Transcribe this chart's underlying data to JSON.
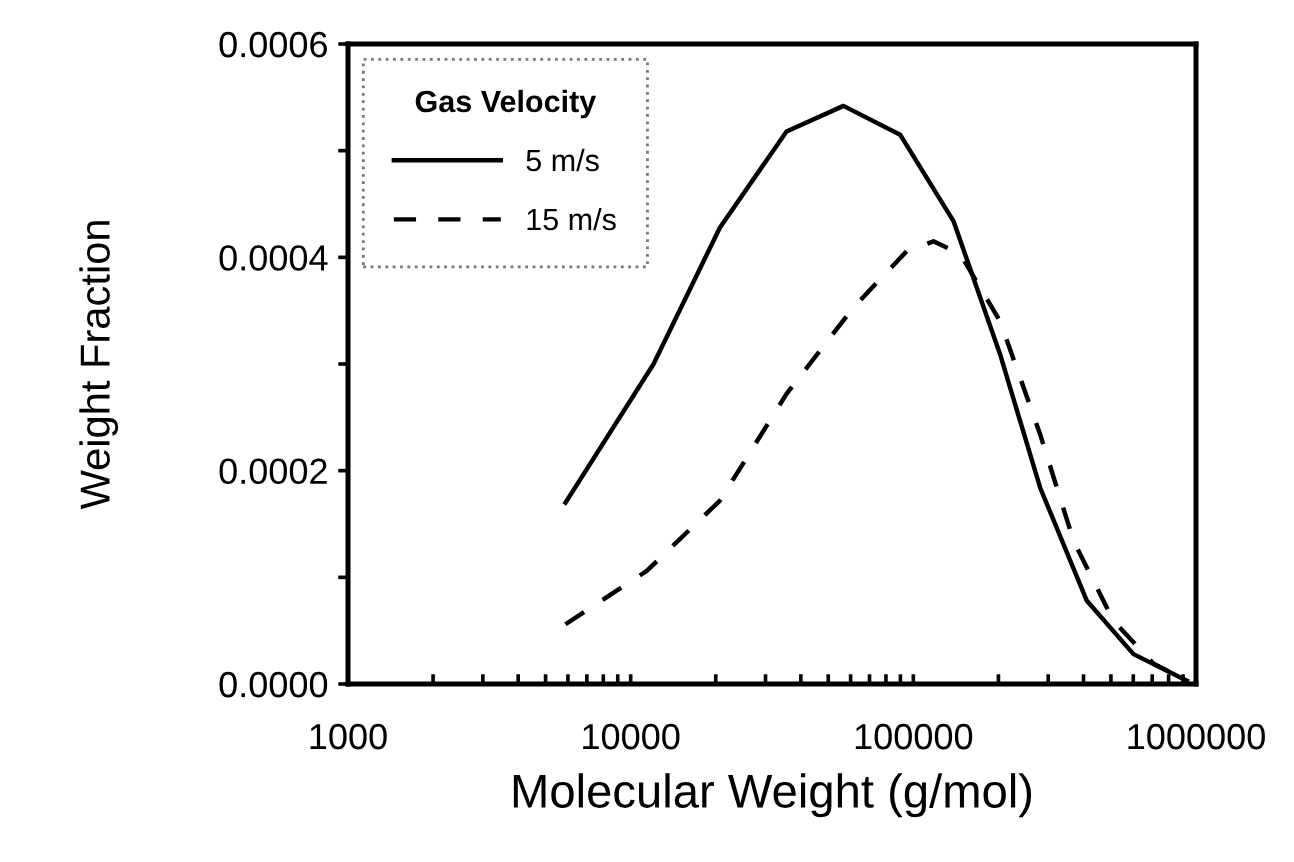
{
  "chart_data": {
    "type": "line",
    "xlabel": "Molecular Weight (g/mol)",
    "ylabel": "Weight Fraction",
    "legend_title": "Gas Velocity",
    "legend": "top left",
    "log": "x",
    "grid": false,
    "xlim": [
      1000,
      1000000
    ],
    "ylim": [
      0,
      0.0006
    ],
    "xticks": [
      1000,
      {
        "value": 2000,
        "label": null
      },
      {
        "value": 3000,
        "label": null
      },
      {
        "value": 4000,
        "label": null
      },
      {
        "value": 5000,
        "label": null
      },
      {
        "value": 6000,
        "label": null
      },
      {
        "value": 7000,
        "label": null
      },
      {
        "value": 8000,
        "label": null
      },
      {
        "value": 9000,
        "label": null
      },
      10000,
      {
        "value": 20000,
        "label": null
      },
      {
        "value": 30000,
        "label": null
      },
      {
        "value": 40000,
        "label": null
      },
      {
        "value": 50000,
        "label": null
      },
      {
        "value": 60000,
        "label": null
      },
      {
        "value": 70000,
        "label": null
      },
      {
        "value": 80000,
        "label": null
      },
      {
        "value": 90000,
        "label": null
      },
      100000,
      {
        "value": 200000,
        "label": null
      },
      {
        "value": 300000,
        "label": null
      },
      {
        "value": 400000,
        "label": null
      },
      {
        "value": 500000,
        "label": null
      },
      {
        "value": 600000,
        "label": null
      },
      {
        "value": 700000,
        "label": null
      },
      {
        "value": 800000,
        "label": null
      },
      {
        "value": 900000,
        "label": null
      },
      1000000
    ],
    "yticks": [
      {
        "value": 0,
        "label": "0.0000"
      },
      {
        "value": 0.0001,
        "label": null
      },
      {
        "value": 0.0002,
        "label": "0.0002"
      },
      {
        "value": 0.0003,
        "label": null
      },
      {
        "value": 0.0004,
        "label": "0.0004"
      },
      {
        "value": 0.0005,
        "label": null
      },
      {
        "value": 0.0006,
        "label": "0.0006"
      }
    ],
    "series": [
      {
        "name": "5 m/s",
        "color": "#000000",
        "line_style": "solid",
        "x": [
          5880,
          12050,
          20700,
          35600,
          56600,
          89800,
          138700,
          202800,
          281000,
          411000,
          601000,
          929000
        ],
        "values": [
          0.00017,
          0.0003,
          0.000428,
          0.000518,
          0.000542,
          0.000515,
          0.000434,
          0.000309,
          0.000184,
          7.8e-05,
          2.8e-05,
          3e-06
        ]
      },
      {
        "name": "15 m/s",
        "color": "#000000",
        "line_style": "dashed",
        "x": [
          5880,
          11400,
          20700,
          35600,
          61400,
          94900,
          117800,
          146600,
          202800,
          281000,
          369000,
          511000,
          708000,
          929000
        ],
        "values": [
          5.6e-05,
          0.000106,
          0.000172,
          0.000272,
          0.000353,
          0.000406,
          0.000415,
          0.000403,
          0.00034,
          0.000234,
          0.000134,
          5.9e-05,
          1.9e-05,
          3e-06
        ]
      }
    ]
  }
}
